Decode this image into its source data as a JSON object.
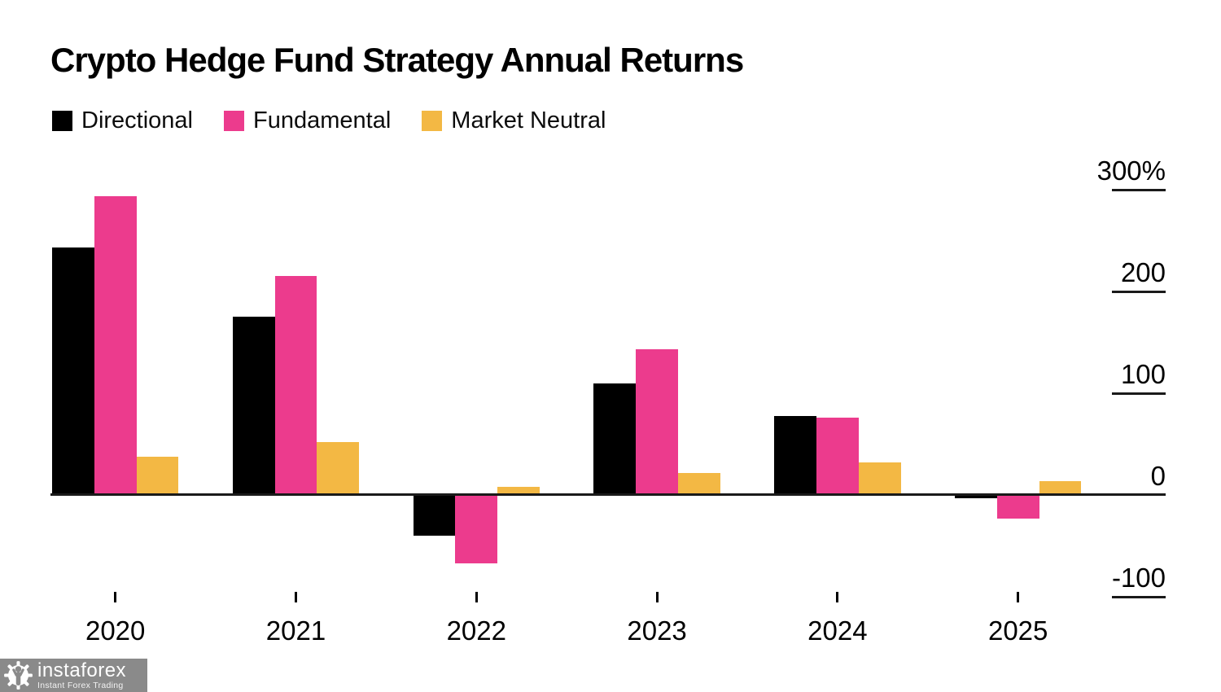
{
  "title": "Crypto Hedge Fund Strategy Annual Returns",
  "colors": {
    "directional": "#000000",
    "fundamental": "#ec3b8d",
    "market_neutral": "#f3b844",
    "axis": "#1a1a1a",
    "watermark_bg": "#8a8a8a",
    "watermark_text": "#ffffff"
  },
  "legend": {
    "items": [
      {
        "label": "Directional",
        "color_key": "directional"
      },
      {
        "label": "Fundamental",
        "color_key": "fundamental"
      },
      {
        "label": "Market Neutral",
        "color_key": "market_neutral"
      }
    ]
  },
  "chart_data": {
    "type": "bar",
    "title": "Crypto Hedge Fund Strategy Annual Returns",
    "unit": "%",
    "categories": [
      "2020",
      "2021",
      "2022",
      "2023",
      "2024",
      "2025"
    ],
    "series": [
      {
        "name": "Directional",
        "color_key": "directional",
        "values": [
          243,
          175,
          -39,
          110,
          78,
          -2
        ]
      },
      {
        "name": "Fundamental",
        "color_key": "fundamental",
        "values": [
          294,
          215,
          -66,
          143,
          76,
          -22
        ]
      },
      {
        "name": "Market Neutral",
        "color_key": "market_neutral",
        "values": [
          38,
          52,
          8,
          22,
          32,
          14
        ]
      }
    ],
    "y_ticks": [
      {
        "label": "300%",
        "value": 300
      },
      {
        "label": "200",
        "value": 200
      },
      {
        "label": "100",
        "value": 100
      },
      {
        "label": "0",
        "value": 0
      },
      {
        "label": "-100",
        "value": -100
      }
    ],
    "ylim": [
      -160,
      330
    ],
    "grid": false,
    "legend_position": "top-left"
  },
  "watermark": {
    "brand": "instaforex",
    "tagline": "Instant Forex Trading"
  }
}
